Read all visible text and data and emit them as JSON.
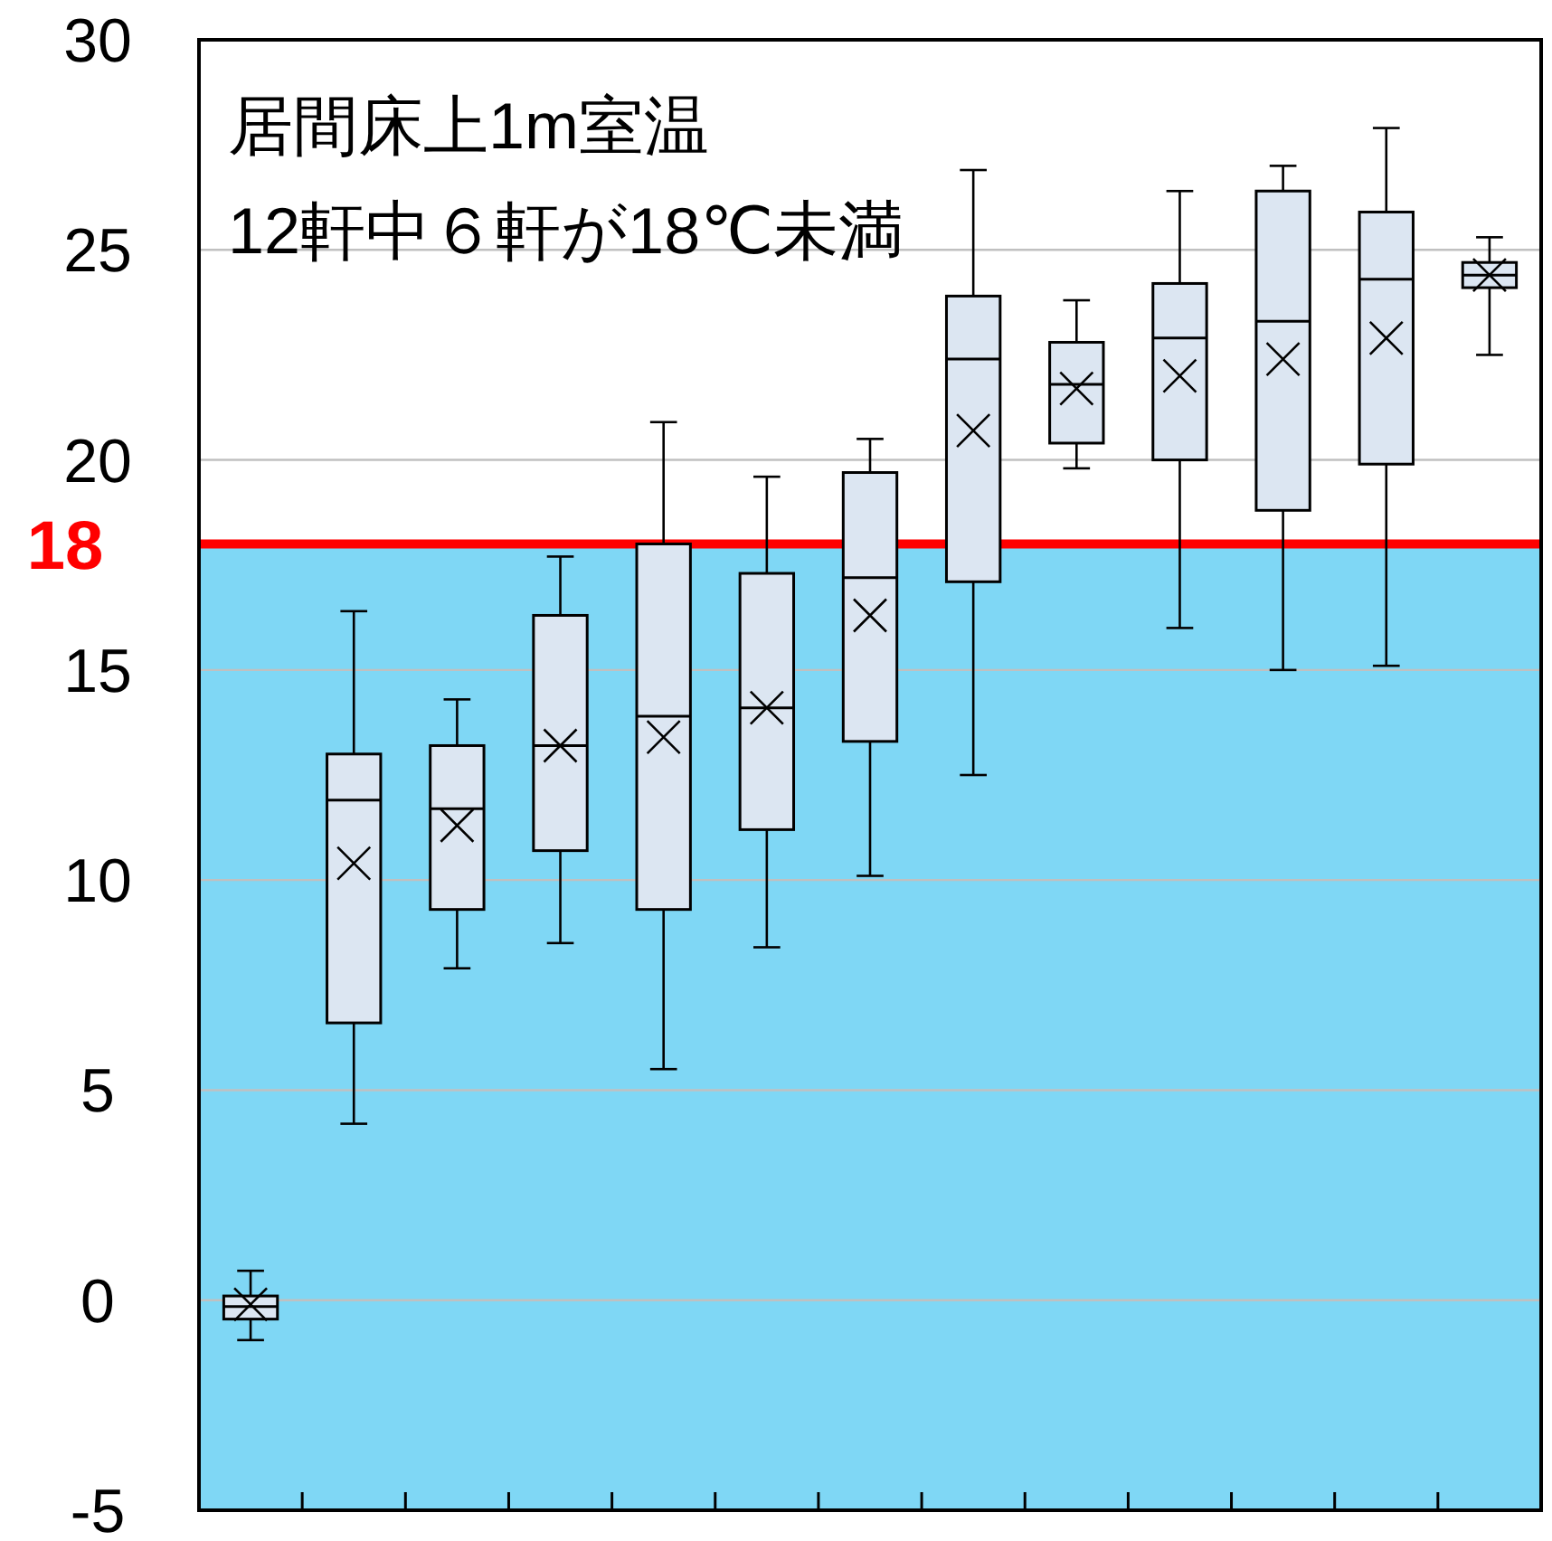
{
  "chart_data": {
    "type": "box",
    "categories": [
      null,
      null,
      null,
      null,
      null,
      null,
      null,
      null,
      null,
      null,
      null,
      null,
      null
    ],
    "series": [
      {
        "color": "#dce6f2",
        "boxes": [
          {
            "low": -0.95,
            "q1": -0.45,
            "median": -0.15,
            "q3": 0.1,
            "high": 0.7,
            "mean": -0.1
          },
          {
            "low": 4.2,
            "q1": 6.6,
            "median": 11.9,
            "q3": 13.0,
            "high": 16.4,
            "mean": 10.4
          },
          {
            "low": 7.9,
            "q1": 9.3,
            "median": 11.7,
            "q3": 13.2,
            "high": 14.3,
            "mean": 11.3
          },
          {
            "low": 8.5,
            "q1": 10.7,
            "median": 13.2,
            "q3": 16.3,
            "high": 17.7,
            "mean": 13.2
          },
          {
            "low": 5.5,
            "q1": 9.3,
            "median": 13.9,
            "q3": 18.0,
            "high": 20.9,
            "mean": 13.4
          },
          {
            "low": 8.4,
            "q1": 11.2,
            "median": 14.1,
            "q3": 17.3,
            "high": 19.6,
            "mean": 14.1
          },
          {
            "low": 10.1,
            "q1": 13.3,
            "median": 17.2,
            "q3": 19.7,
            "high": 20.5,
            "mean": 16.3
          },
          {
            "low": 12.5,
            "q1": 17.1,
            "median": 22.4,
            "q3": 23.9,
            "high": 26.9,
            "mean": 20.7
          },
          {
            "low": 19.8,
            "q1": 20.4,
            "median": 21.8,
            "q3": 22.8,
            "high": 23.8,
            "mean": 21.7
          },
          {
            "low": 16.0,
            "q1": 20.0,
            "median": 22.9,
            "q3": 24.2,
            "high": 26.4,
            "mean": 22.0
          },
          {
            "low": 15.0,
            "q1": 18.8,
            "median": 23.3,
            "q3": 26.4,
            "high": 27.0,
            "mean": 22.4
          },
          {
            "low": 15.1,
            "q1": 19.9,
            "median": 24.3,
            "q3": 25.9,
            "high": 27.9,
            "mean": 22.9
          },
          {
            "low": 22.5,
            "q1": 24.1,
            "median": 24.4,
            "q3": 24.7,
            "high": 25.3,
            "mean": 24.4
          }
        ]
      }
    ],
    "ylim": [
      -5,
      30
    ],
    "yticks": [
      -5,
      0,
      5,
      10,
      15,
      20,
      25,
      30
    ],
    "grid": "y",
    "ref_lines": [
      {
        "axis": "y",
        "value": 18,
        "label": "18",
        "color": "#ff0000"
      }
    ],
    "bands": [
      {
        "axis": "y",
        "from": -5,
        "to": 18,
        "color": "#7fd7f5"
      }
    ],
    "annotations": [
      "居間床上1m室温",
      "12軒中６軒が18℃未満"
    ]
  }
}
